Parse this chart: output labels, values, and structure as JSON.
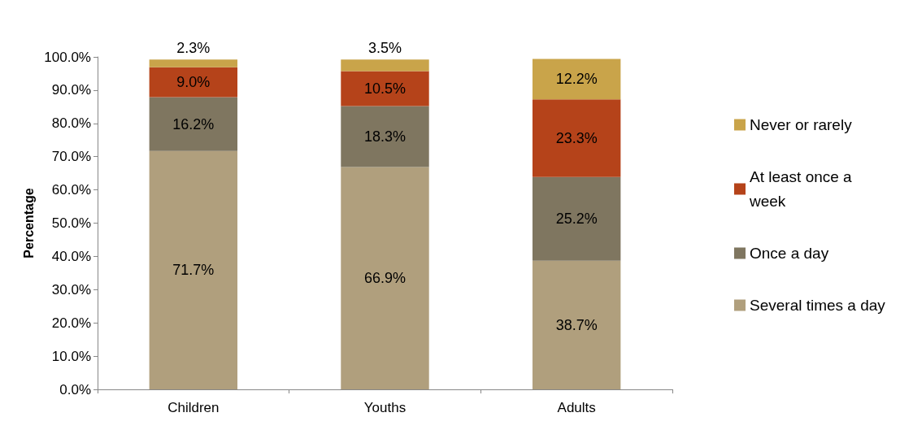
{
  "chart_data": {
    "type": "bar",
    "stacked": true,
    "ylabel": "Percentage",
    "categories": [
      "Children",
      "Youths",
      "Adults"
    ],
    "series": [
      {
        "name": "Several times a day",
        "color": "#b09f7d",
        "values": [
          71.7,
          66.9,
          38.7
        ],
        "value_labels": [
          "71.7%",
          "66.9%",
          "38.7%"
        ]
      },
      {
        "name": "Once a day",
        "color": "#7f7660",
        "values": [
          16.2,
          18.3,
          25.2
        ],
        "value_labels": [
          "16.2%",
          "18.3%",
          "25.2%"
        ]
      },
      {
        "name": "At least once a week",
        "color": "#b5431a",
        "values": [
          9.0,
          10.5,
          23.3
        ],
        "value_labels": [
          "9.0%",
          "10.5%",
          "23.3%"
        ]
      },
      {
        "name": "Never or rarely",
        "color": "#c9a44a",
        "values": [
          2.3,
          3.5,
          12.2
        ],
        "value_labels": [
          "2.3%",
          "3.5%",
          "12.2%"
        ]
      }
    ],
    "ylim": [
      0,
      100
    ],
    "yticks": [
      {
        "value": 0,
        "label": "0.0%"
      },
      {
        "value": 10,
        "label": "10.0%"
      },
      {
        "value": 20,
        "label": "20.0%"
      },
      {
        "value": 30,
        "label": "30.0%"
      },
      {
        "value": 40,
        "label": "40.0%"
      },
      {
        "value": 50,
        "label": "50.0%"
      },
      {
        "value": 60,
        "label": "60.0%"
      },
      {
        "value": 70,
        "label": "70.0%"
      },
      {
        "value": 80,
        "label": "80.0%"
      },
      {
        "value": 90,
        "label": "90.0%"
      },
      {
        "value": 100,
        "label": "100.0%"
      }
    ],
    "grid": false,
    "legend": "right"
  }
}
